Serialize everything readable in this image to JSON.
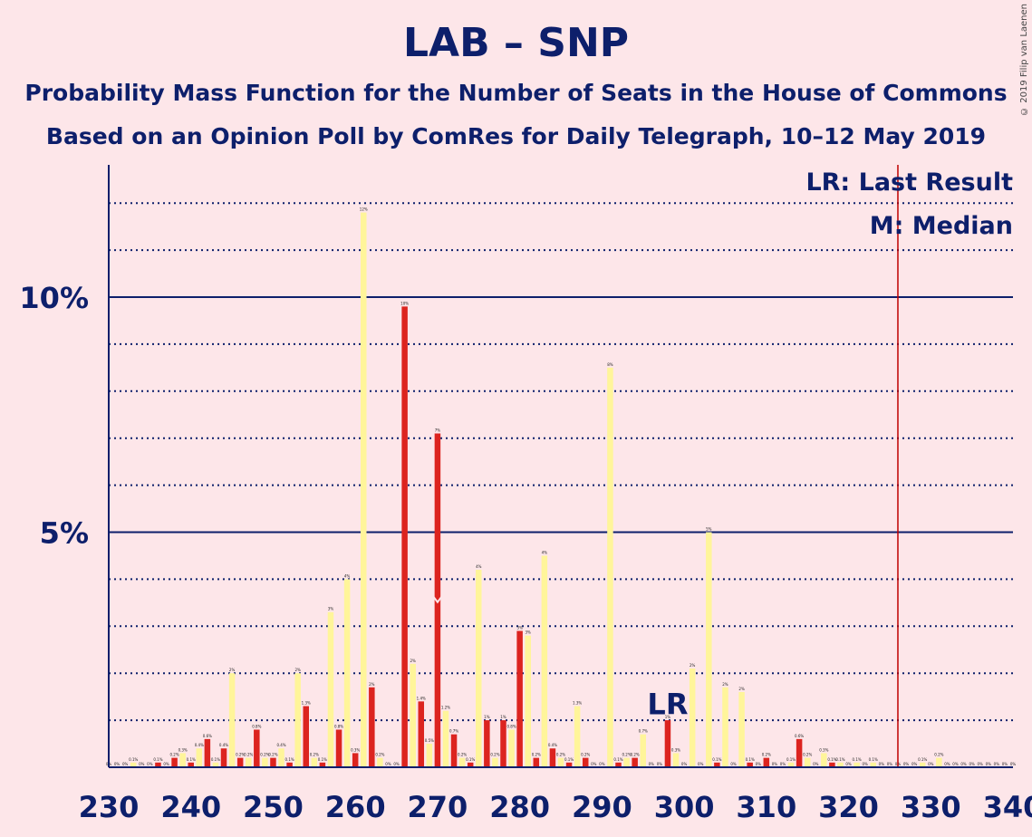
{
  "title": "LAB – SNP",
  "subtitle1": "Probability Mass Function for the Number of Seats in the House of Commons",
  "subtitle2": "Based on an Opinion Poll by ComRes for Daily Telegraph, 10–12 May 2019",
  "copyright": "© 2019 Filip van Laenen",
  "legend": {
    "last_result": "LR: Last Result",
    "median": "M: Median"
  },
  "annotations": {
    "lr_label": "LR",
    "median_marker": "M"
  },
  "colors": {
    "background": "#fde6e9",
    "axis": "#0d1f6b",
    "lab": "#dc241f",
    "snp": "#fff59a",
    "majority_line": "#c00000"
  },
  "chart_data": {
    "type": "bar",
    "title": "LAB – SNP",
    "xlabel": "",
    "ylabel": "",
    "x_ticks": [
      "230",
      "240",
      "250",
      "260",
      "270",
      "280",
      "290",
      "300",
      "310",
      "320",
      "330",
      "340"
    ],
    "y_ticks": [
      "5%",
      "10%"
    ],
    "ylim": [
      0,
      12.5
    ],
    "xlim": [
      230,
      340
    ],
    "grid": true,
    "majority_line_x": 326,
    "last_result_x": 298,
    "median_x": 270,
    "lab": {
      "x": [
        230,
        232,
        234,
        236,
        238,
        240,
        242,
        244,
        246,
        248,
        250,
        252,
        254,
        256,
        258,
        260,
        262,
        264,
        266,
        268,
        270,
        272,
        274,
        276,
        278,
        280,
        282,
        284,
        286,
        288,
        290,
        292,
        294,
        296,
        298,
        300,
        302,
        304,
        306,
        308,
        310,
        312,
        314,
        316,
        318,
        320,
        322,
        324,
        326,
        328,
        330,
        332,
        334,
        336,
        338,
        340
      ],
      "values": [
        0,
        0,
        0,
        0.1,
        0.2,
        0.1,
        0.6,
        0.4,
        0.2,
        0.8,
        0.2,
        0.1,
        1.3,
        0.1,
        0.8,
        0.3,
        1.7,
        0,
        9.8,
        1.4,
        7.1,
        0.7,
        0.1,
        1,
        1,
        2.9,
        0.2,
        0.4,
        0.1,
        0.2,
        0,
        0.1,
        0.2,
        0,
        1,
        0,
        0,
        0.1,
        0,
        0.1,
        0.2,
        0,
        0.6,
        0,
        0.1,
        0,
        0,
        0,
        0,
        0,
        0,
        0,
        0,
        0,
        0,
        0
      ],
      "labels": [
        "0%",
        "0%",
        "0%",
        "0.1%",
        "0.2%",
        "0.1%",
        "0.6%",
        "0.4%",
        "0.2%",
        "0.8%",
        "0.2%",
        "0.1%",
        "1.3%",
        "0.1%",
        "0.8%",
        "0.3%",
        "2%",
        "0%",
        "10%",
        "1.4%",
        "7%",
        "0.7%",
        "0.1%",
        "1%",
        "1%",
        "3%",
        "0.2%",
        "0.4%",
        "0.1%",
        "0.2%",
        "0%",
        "0.1%",
        "0.2%",
        "0%",
        "1%",
        "0%",
        "0%",
        "0.1%",
        "0%",
        "0.1%",
        "0.2%",
        "0%",
        "0.6%",
        "0%",
        "0.1%",
        "0%",
        "0%",
        "0%",
        "0%",
        "0%",
        "0%",
        "0%",
        "0%",
        "0%",
        "0%",
        "0%"
      ]
    },
    "snp": {
      "x": [
        231,
        233,
        235,
        237,
        239,
        241,
        243,
        245,
        247,
        249,
        251,
        253,
        255,
        257,
        259,
        261,
        263,
        265,
        267,
        269,
        271,
        273,
        275,
        277,
        279,
        281,
        283,
        285,
        287,
        289,
        291,
        293,
        295,
        297,
        299,
        301,
        303,
        305,
        307,
        309,
        311,
        313,
        315,
        317,
        319,
        321,
        323,
        325,
        327,
        329,
        331,
        333,
        335,
        337,
        339
      ],
      "values": [
        0,
        0.1,
        0,
        0,
        0.3,
        0.4,
        0.1,
        2,
        0.2,
        0.2,
        0.4,
        2,
        0.2,
        3.3,
        4,
        11.8,
        0.2,
        0,
        2.2,
        0.5,
        1.2,
        0.2,
        4.2,
        0.2,
        0.8,
        2.8,
        4.5,
        0.2,
        1.3,
        0,
        8.5,
        0.2,
        0.7,
        0,
        0.3,
        2.1,
        5,
        1.7,
        1.6,
        0,
        0,
        0.1,
        0.2,
        0.3,
        0.1,
        0.1,
        0.1,
        0,
        0,
        0.1,
        0.2,
        0,
        0,
        0,
        0
      ],
      "labels": [
        "0%",
        "0.1%",
        "0%",
        "0%",
        "0.3%",
        "0.4%",
        "0.1%",
        "2%",
        "0.2%",
        "0.2%",
        "0.4%",
        "2%",
        "0.2%",
        "3%",
        "4%",
        "12%",
        "0.2%",
        "0%",
        "2%",
        "0.5%",
        "1.2%",
        "0.2%",
        "4%",
        "0.2%",
        "0.8%",
        "3%",
        "4%",
        "0.2%",
        "1.3%",
        "0%",
        "8%",
        "0.2%",
        "0.7%",
        "0%",
        "0.3%",
        "2%",
        "5%",
        "2%",
        "2%",
        "0%",
        "0%",
        "0.1%",
        "0.2%",
        "0.3%",
        "0.1%",
        "0.1%",
        "0.1%",
        "0%",
        "0%",
        "0.1%",
        "0.2%",
        "0%",
        "0%",
        "0%",
        "0%"
      ]
    }
  }
}
